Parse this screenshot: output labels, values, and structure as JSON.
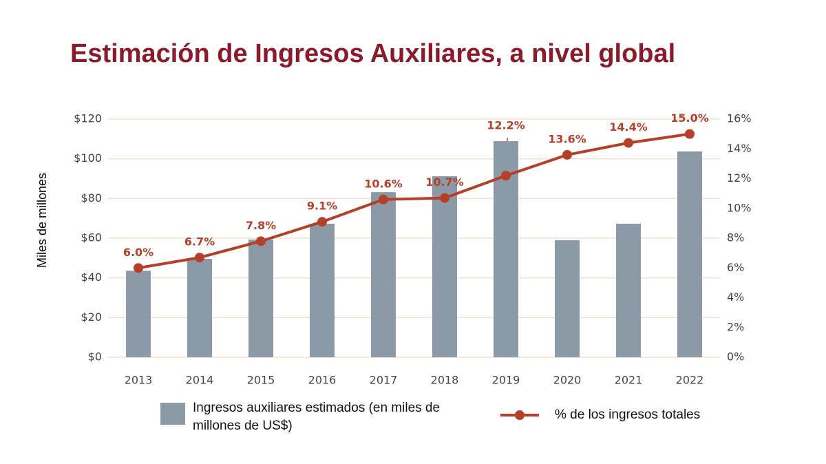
{
  "chart_data": {
    "type": "combo",
    "title": "Estimación de Ingresos Auxiliares, a nivel global",
    "y_label": "Miles de millones",
    "categories": [
      "2013",
      "2014",
      "2015",
      "2016",
      "2017",
      "2018",
      "2019",
      "2020",
      "2021",
      "2022"
    ],
    "series": [
      {
        "name": "Ingresos auxiliares estimados (en miles de millones de US$)",
        "type": "bar",
        "color": "#8c9aa8",
        "values": [
          43.6,
          49.6,
          59.3,
          67.3,
          83.2,
          91.2,
          108.9,
          59.0,
          67.3,
          103.7
        ]
      },
      {
        "name": "% de los ingresos totales",
        "type": "line",
        "axis": "y2",
        "color": "#b5402a",
        "values": [
          6.0,
          6.7,
          7.8,
          9.1,
          10.6,
          10.7,
          12.2,
          13.6,
          14.4,
          15.0
        ],
        "value_labels": [
          "6.0%",
          "6.7%",
          "7.8%",
          "9.1%",
          "10.6%",
          "10.7%",
          "12.2%",
          "13.6%",
          "14.4%",
          "15.0%"
        ]
      }
    ],
    "ylim": [
      0,
      120
    ],
    "yticks": [
      {
        "value": 0,
        "label": "$0"
      },
      {
        "value": 20,
        "label": "$20"
      },
      {
        "value": 40,
        "label": "$40"
      },
      {
        "value": 60,
        "label": "$60"
      },
      {
        "value": 80,
        "label": "$80"
      },
      {
        "value": 100,
        "label": "$100"
      },
      {
        "value": 120,
        "label": "$120"
      }
    ],
    "y2lim": [
      0,
      16
    ],
    "y2ticks": [
      {
        "value": 0,
        "label": "0%"
      },
      {
        "value": 2,
        "label": "2%"
      },
      {
        "value": 4,
        "label": "4%"
      },
      {
        "value": 6,
        "label": "6%"
      },
      {
        "value": 8,
        "label": "8%"
      },
      {
        "value": 10,
        "label": "10%"
      },
      {
        "value": 12,
        "label": "12%"
      },
      {
        "value": 14,
        "label": "14%"
      },
      {
        "value": 16,
        "label": "16%"
      }
    ],
    "grid": true
  }
}
